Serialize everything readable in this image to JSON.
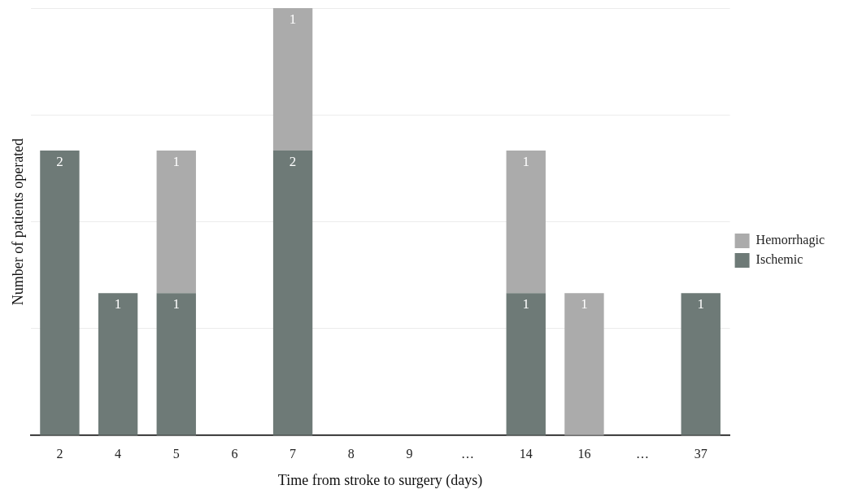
{
  "chart_data": {
    "type": "bar",
    "stacked": true,
    "xlabel": "Time from stroke to surgery (days)",
    "ylabel": "Number of patients operated",
    "categories": [
      "2",
      "4",
      "5",
      "6",
      "7",
      "8",
      "9",
      "…",
      "14",
      "16",
      "…",
      "37"
    ],
    "series": [
      {
        "name": "Ischemic",
        "color": "#6e7a77",
        "values": [
          2,
          1,
          1,
          null,
          2,
          null,
          null,
          null,
          1,
          null,
          null,
          1
        ]
      },
      {
        "name": "Hemorrhagic",
        "color": "#ababab",
        "values": [
          null,
          null,
          1,
          null,
          1,
          null,
          null,
          null,
          1,
          1,
          null,
          null
        ]
      }
    ],
    "ylim": [
      0,
      3
    ],
    "yticks": [
      {
        "value": 0,
        "label": null
      },
      {
        "value": 0.75,
        "label": null
      },
      {
        "value": 1.5,
        "label": null
      },
      {
        "value": 2.25,
        "label": null
      },
      {
        "value": 3,
        "label": null
      }
    ],
    "grid": "y",
    "tick_labels": "x",
    "data_labels": true,
    "legend": "right"
  }
}
